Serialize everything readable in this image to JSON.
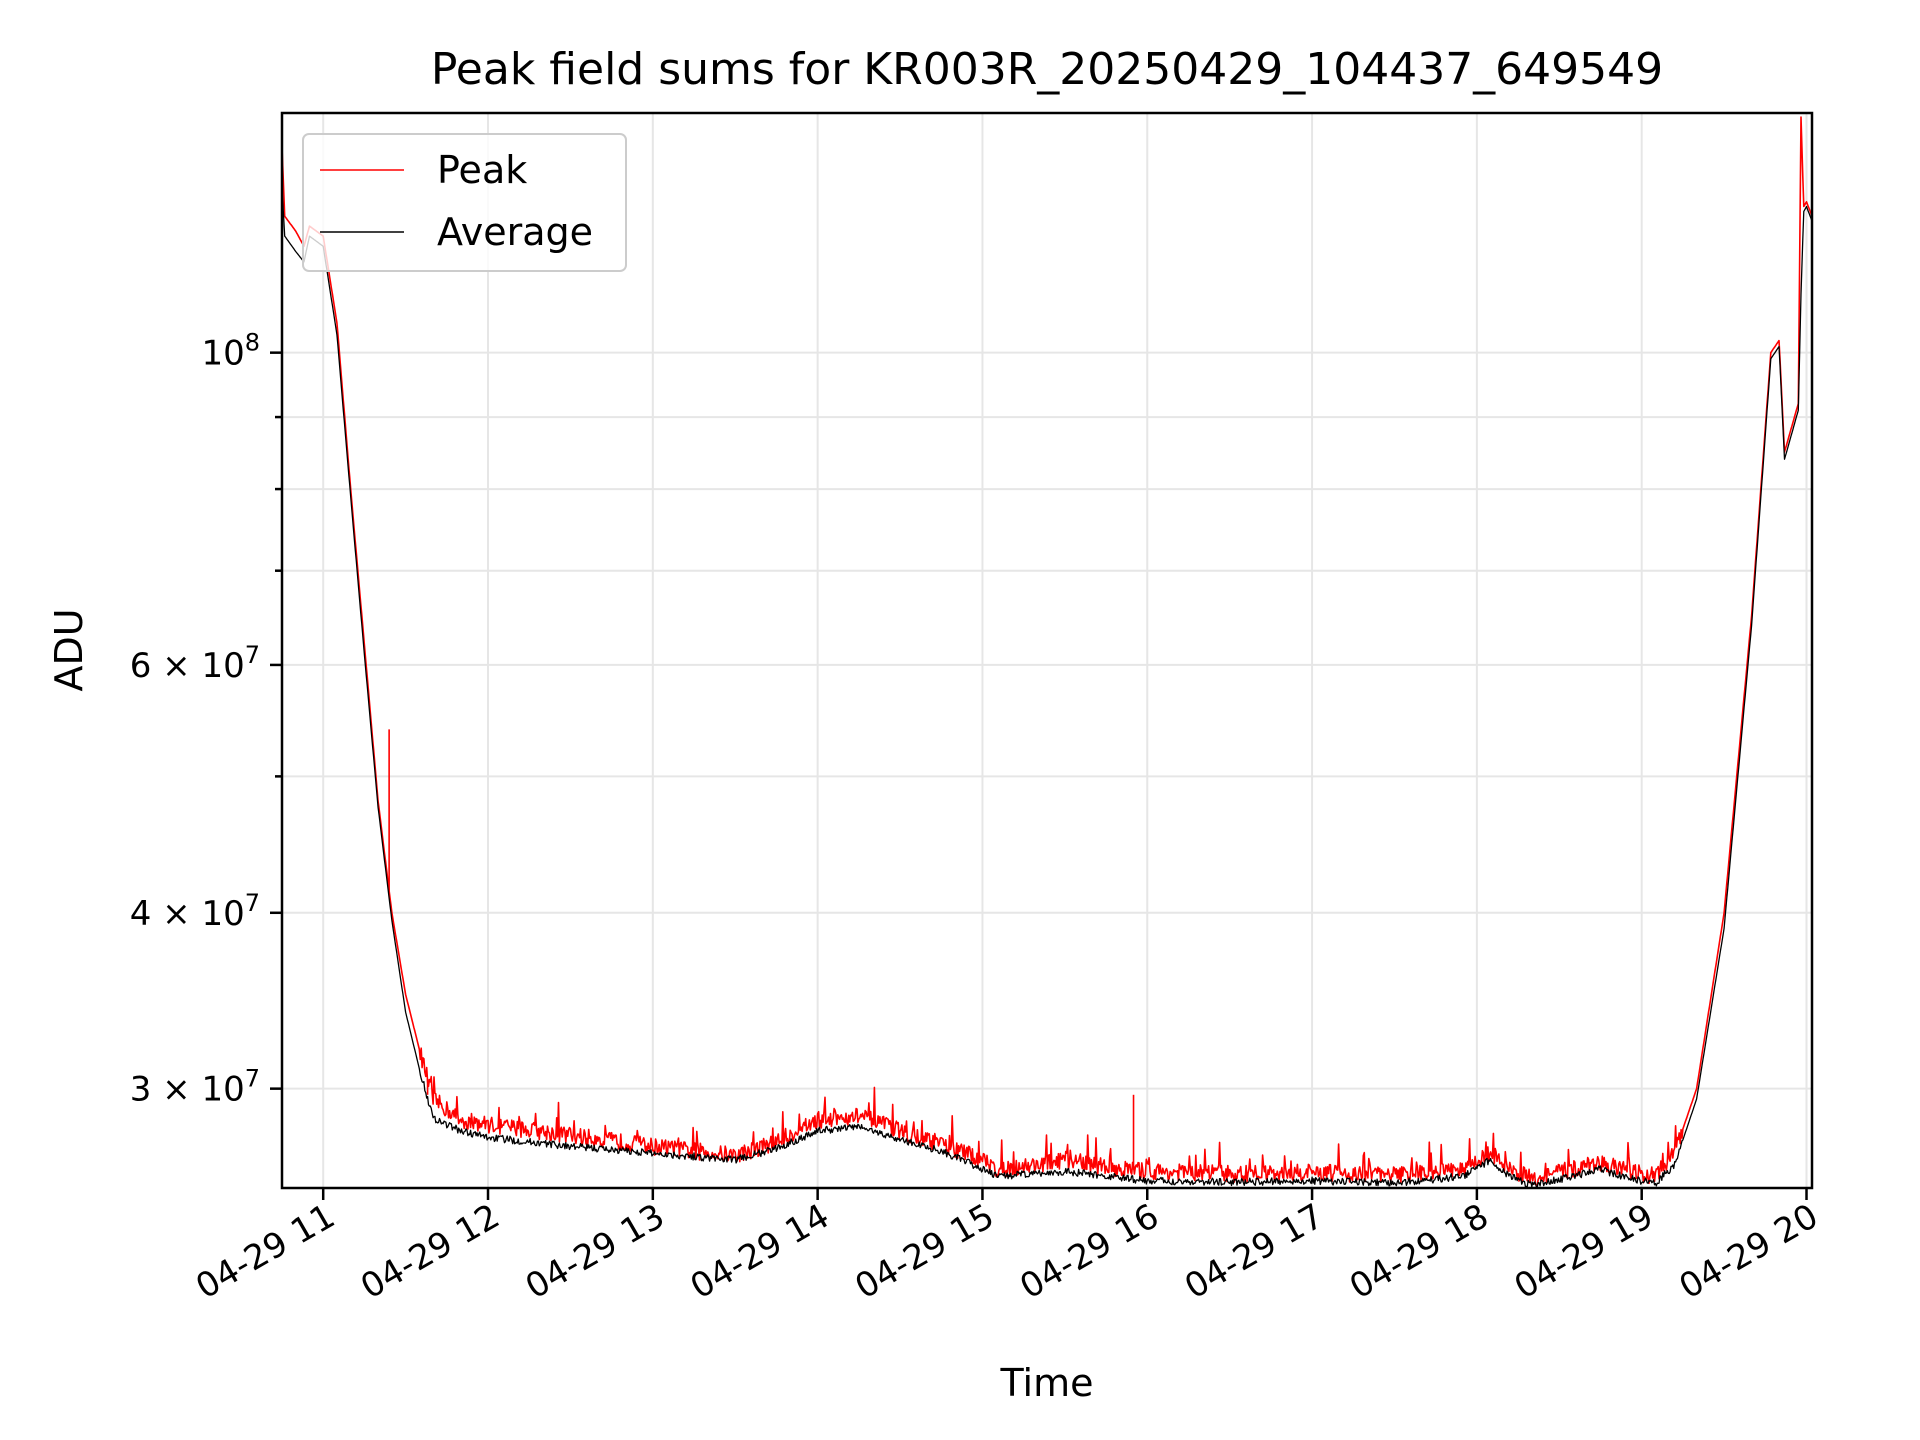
{
  "chart_data": {
    "type": "line",
    "title": "Peak field sums for KR003R_20250429_104437_649549",
    "xlabel": "Time",
    "ylabel": "ADU",
    "yscale": "log",
    "xlim": [
      "04-29 10:45",
      "04-29 20:02"
    ],
    "ylim": [
      25500000,
      148000000
    ],
    "grid": true,
    "legend_placement": "upper-left",
    "x_tick_labels": [
      "04-29 11",
      "04-29 12",
      "04-29 13",
      "04-29 14",
      "04-29 15",
      "04-29 16",
      "04-29 17",
      "04-29 18",
      "04-29 19",
      "04-29 20"
    ],
    "y_major_ticks": [
      {
        "value": 100000000,
        "base": "10",
        "exp": "8"
      },
      {
        "value": 60000000,
        "base": "6 × 10",
        "exp": "7"
      },
      {
        "value": 40000000,
        "base": "4 × 10",
        "exp": "7"
      },
      {
        "value": 30000000,
        "base": "3 × 10",
        "exp": "7"
      }
    ],
    "y_minor_ticks": [
      50000000,
      70000000,
      80000000,
      90000000
    ],
    "series": [
      {
        "name": "Peak",
        "color": "#ff0000",
        "points": [
          [
            "04-29 10:45",
            140000000
          ],
          [
            "04-29 10:46",
            125000000
          ],
          [
            "04-29 10:50",
            122000000
          ],
          [
            "04-29 10:53",
            119000000
          ],
          [
            "04-29 10:55",
            123000000
          ],
          [
            "04-29 11:00",
            121000000
          ],
          [
            "04-29 11:05",
            105000000
          ],
          [
            "04-29 11:10",
            80000000
          ],
          [
            "04-29 11:15",
            62000000
          ],
          [
            "04-29 11:20",
            48000000
          ],
          [
            "04-29 11:25",
            40000000
          ],
          [
            "04-29 11:30",
            35000000
          ],
          [
            "04-29 11:35",
            32000000
          ],
          [
            "04-29 11:40",
            29500000
          ],
          [
            "04-29 11:50",
            28500000
          ],
          [
            "04-29 12:00",
            28300000
          ],
          [
            "04-29 12:30",
            27800000
          ],
          [
            "04-29 13:00",
            27300000
          ],
          [
            "04-29 13:30",
            26900000
          ],
          [
            "04-29 13:45",
            27500000
          ],
          [
            "04-29 14:00",
            28500000
          ],
          [
            "04-29 14:15",
            28700000
          ],
          [
            "04-29 14:30",
            28000000
          ],
          [
            "04-29 14:45",
            27400000
          ],
          [
            "04-29 15:00",
            26700000
          ],
          [
            "04-29 15:05",
            26300000
          ],
          [
            "04-29 15:20",
            26500000
          ],
          [
            "04-29 15:30",
            26700000
          ],
          [
            "04-29 15:45",
            26400000
          ],
          [
            "04-29 16:00",
            26200000
          ],
          [
            "04-29 16:30",
            26100000
          ],
          [
            "04-29 17:00",
            26150000
          ],
          [
            "04-29 17:30",
            26050000
          ],
          [
            "04-29 17:55",
            26300000
          ],
          [
            "04-29 18:05",
            27000000
          ],
          [
            "04-29 18:12",
            26300000
          ],
          [
            "04-29 18:20",
            25900000
          ],
          [
            "04-29 18:35",
            26300000
          ],
          [
            "04-29 18:45",
            26600000
          ],
          [
            "04-29 18:55",
            26200000
          ],
          [
            "04-29 19:05",
            26000000
          ],
          [
            "04-29 19:12",
            27000000
          ],
          [
            "04-29 19:20",
            30000000
          ],
          [
            "04-29 19:30",
            40000000
          ],
          [
            "04-29 19:40",
            65000000
          ],
          [
            "04-29 19:47",
            100000000
          ],
          [
            "04-29 19:50",
            102000000
          ],
          [
            "04-29 19:52",
            85000000
          ],
          [
            "04-29 19:57",
            92000000
          ],
          [
            "04-29 19:58",
            147000000
          ],
          [
            "04-29 19:59",
            127000000
          ],
          [
            "04-29 20:00",
            128000000
          ],
          [
            "04-29 20:02",
            125000000
          ]
        ],
        "spikes": [
          [
            "04-29 11:24",
            54000000
          ],
          [
            "04-29 15:55",
            29700000
          ],
          [
            "04-29 11:38",
            29700000
          ]
        ]
      },
      {
        "name": "Average",
        "color": "#000000",
        "points": [
          [
            "04-29 10:45",
            131000000
          ],
          [
            "04-29 10:46",
            121000000
          ],
          [
            "04-29 10:50",
            118000000
          ],
          [
            "04-29 10:53",
            116000000
          ],
          [
            "04-29 10:55",
            121000000
          ],
          [
            "04-29 11:00",
            119000000
          ],
          [
            "04-29 11:05",
            103000000
          ],
          [
            "04-29 11:10",
            79000000
          ],
          [
            "04-29 11:15",
            61000000
          ],
          [
            "04-29 11:20",
            47500000
          ],
          [
            "04-29 11:25",
            39500000
          ],
          [
            "04-29 11:30",
            34000000
          ],
          [
            "04-29 11:35",
            31000000
          ],
          [
            "04-29 11:40",
            28600000
          ],
          [
            "04-29 11:50",
            28000000
          ],
          [
            "04-29 12:00",
            27700000
          ],
          [
            "04-29 12:30",
            27300000
          ],
          [
            "04-29 13:00",
            27000000
          ],
          [
            "04-29 13:30",
            26700000
          ],
          [
            "04-29 13:45",
            27200000
          ],
          [
            "04-29 14:00",
            28000000
          ],
          [
            "04-29 14:15",
            28200000
          ],
          [
            "04-29 14:30",
            27600000
          ],
          [
            "04-29 14:45",
            27100000
          ],
          [
            "04-29 15:00",
            26300000
          ],
          [
            "04-29 15:05",
            26000000
          ],
          [
            "04-29 15:20",
            26100000
          ],
          [
            "04-29 15:30",
            26200000
          ],
          [
            "04-29 15:45",
            26000000
          ],
          [
            "04-29 16:00",
            25800000
          ],
          [
            "04-29 16:30",
            25750000
          ],
          [
            "04-29 17:00",
            25800000
          ],
          [
            "04-29 17:30",
            25700000
          ],
          [
            "04-29 17:55",
            26000000
          ],
          [
            "04-29 18:05",
            26700000
          ],
          [
            "04-29 18:12",
            26000000
          ],
          [
            "04-29 18:20",
            25600000
          ],
          [
            "04-29 18:35",
            26000000
          ],
          [
            "04-29 18:45",
            26300000
          ],
          [
            "04-29 18:55",
            25900000
          ],
          [
            "04-29 19:05",
            25700000
          ],
          [
            "04-29 19:12",
            26500000
          ],
          [
            "04-29 19:20",
            29500000
          ],
          [
            "04-29 19:30",
            39000000
          ],
          [
            "04-29 19:40",
            64000000
          ],
          [
            "04-29 19:47",
            99000000
          ],
          [
            "04-29 19:50",
            101000000
          ],
          [
            "04-29 19:52",
            84000000
          ],
          [
            "04-29 19:57",
            91000000
          ],
          [
            "04-29 19:58",
            110000000
          ],
          [
            "04-29 19:59",
            126000000
          ],
          [
            "04-29 20:00",
            127000000
          ],
          [
            "04-29 20:02",
            124000000
          ]
        ]
      }
    ]
  }
}
